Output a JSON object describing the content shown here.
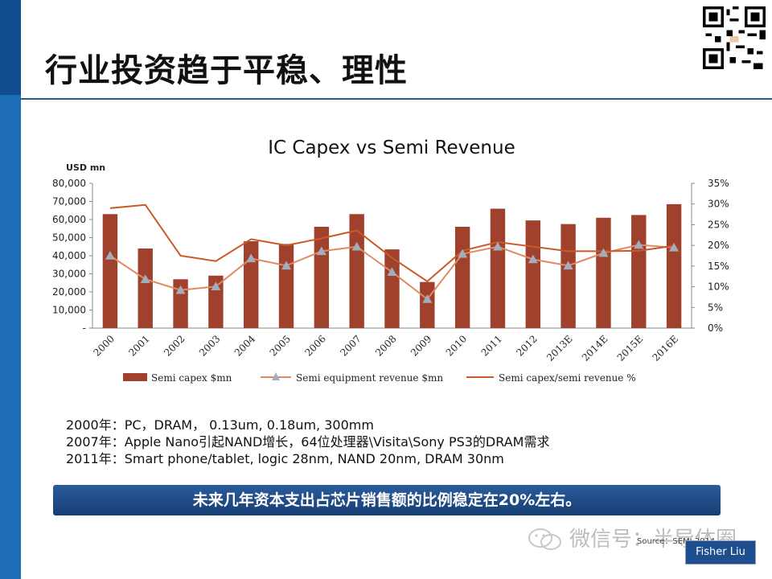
{
  "page": {
    "title": "行业投资趋于平稳、理性",
    "notes": [
      "2000年：PC，DRAM， 0.13um, 0.18um, 300mm",
      "2007年：Apple Nano引起NAND增长，64位处理器\\Visita\\Sony PS3的DRAM需求",
      "2011年：Smart phone/tablet, logic 28nm, NAND 20nm, DRAM 30nm"
    ],
    "banner": "未来几年资本支出占芯片销售额的比例稳定在20%左右。",
    "watermark": "微信号：半导体圈",
    "source": "Source：SEMI 2014",
    "author": "Fisher Liu"
  },
  "colors": {
    "bar": "#a0412e",
    "equipment_line": "#e08a63",
    "equipment_marker": "#a3adbb",
    "ratio_line": "#c95a27",
    "brand": "#1d6db5"
  },
  "chart_data": {
    "type": "bar",
    "title": "IC Capex vs Semi Revenue",
    "ylabel": "USD mn",
    "categories": [
      "2000",
      "2001",
      "2002",
      "2003",
      "2004",
      "2005",
      "2006",
      "2007",
      "2008",
      "2009",
      "2010",
      "2011",
      "2012",
      "2013E",
      "2014E",
      "2015E",
      "2016E"
    ],
    "ylim": [
      0,
      80000
    ],
    "y_ticks": [
      "-",
      "10,000",
      "20,000",
      "30,000",
      "40,000",
      "50,000",
      "60,000",
      "70,000",
      "80,000"
    ],
    "y2lim": [
      0,
      35
    ],
    "y2_ticks": [
      "0%",
      "5%",
      "10%",
      "15%",
      "20%",
      "25%",
      "30%",
      "35%"
    ],
    "grid": false,
    "legend_position": "bottom",
    "series": [
      {
        "name": "Semi capex $mn",
        "type": "bar",
        "axis": "left",
        "values": [
          63000,
          44000,
          27000,
          29000,
          48000,
          46500,
          56000,
          63000,
          43500,
          25500,
          56000,
          66000,
          59500,
          57500,
          61000,
          62500,
          68500
        ]
      },
      {
        "name": "Semi equipment revenue $mn",
        "type": "line",
        "axis": "left",
        "values": [
          40000,
          27000,
          21000,
          23000,
          38500,
          34500,
          42500,
          45000,
          31000,
          16000,
          41000,
          45000,
          38000,
          34500,
          41500,
          46000,
          44500
        ]
      },
      {
        "name": "Semi capex/semi revenue %",
        "type": "line",
        "axis": "right",
        "values": [
          29,
          29.8,
          17.5,
          16.2,
          21.5,
          20,
          21.7,
          23.6,
          17,
          11.3,
          18.7,
          20.8,
          19.7,
          18.6,
          18.6,
          18.7,
          19.9
        ]
      }
    ]
  }
}
